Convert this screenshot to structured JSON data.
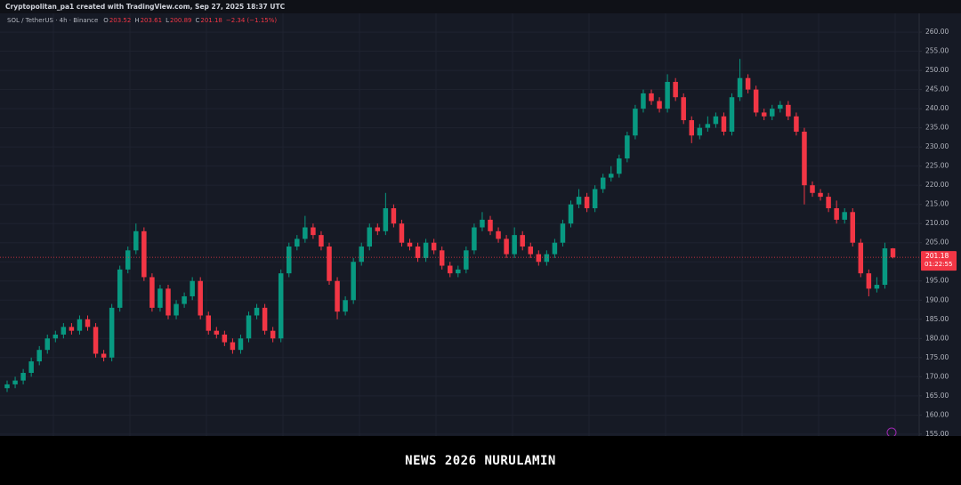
{
  "header": {
    "credit": "Cryptopolitan_pa1 created with TradingView.com, Sep 27, 2025 18:37 UTC"
  },
  "chart_data": {
    "type": "candlestick",
    "symbol": "SOL / TetherUS · 4h · Binance",
    "ohlc_legend": [
      {
        "key": "O",
        "value": "203.52"
      },
      {
        "key": "H",
        "value": "203.61"
      },
      {
        "key": "L",
        "value": "200.89"
      },
      {
        "key": "C",
        "value": "201.18"
      }
    ],
    "change": "−2.34 (−1.15%)",
    "countdown": "01:22:55",
    "up_color": "#089981",
    "down_color": "#f23645",
    "grid": true,
    "ylim": [
      154.5,
      264.9
    ],
    "yticks": [
      {
        "value": 155,
        "label": "155.00"
      },
      {
        "value": 160,
        "label": "160.00"
      },
      {
        "value": 165,
        "label": "165.00"
      },
      {
        "value": 170,
        "label": "170.00"
      },
      {
        "value": 175,
        "label": "175.00"
      },
      {
        "value": 180,
        "label": "180.00"
      },
      {
        "value": 185,
        "label": "185.00"
      },
      {
        "value": 190,
        "label": "190.00"
      },
      {
        "value": 195,
        "label": "195.00"
      },
      {
        "value": 200,
        "label": "200.00"
      },
      {
        "value": 205,
        "label": "205.00"
      },
      {
        "value": 210,
        "label": "210.00"
      },
      {
        "value": 215,
        "label": "215.00"
      },
      {
        "value": 220,
        "label": "220.00"
      },
      {
        "value": 225,
        "label": "225.00"
      },
      {
        "value": 230,
        "label": "230.00"
      },
      {
        "value": 235,
        "label": "235.00"
      },
      {
        "value": 240,
        "label": "240.00"
      },
      {
        "value": 245,
        "label": "245.00"
      },
      {
        "value": 250,
        "label": "250.00"
      },
      {
        "value": 255,
        "label": "255.00"
      },
      {
        "value": 260,
        "label": "260.00"
      }
    ],
    "open": [
      167,
      168,
      169,
      171,
      174,
      177,
      180,
      181,
      183,
      182,
      185,
      183,
      176,
      175,
      188,
      198,
      203,
      208,
      196,
      188,
      193,
      186,
      189,
      191,
      195,
      186,
      182,
      181,
      179,
      177,
      180,
      186,
      188,
      182,
      180,
      197,
      204,
      206,
      209,
      207,
      204,
      195,
      187,
      190,
      200,
      204,
      209,
      208,
      214,
      210,
      205,
      204,
      201,
      205,
      203,
      199,
      197,
      198,
      203,
      209,
      211,
      208,
      206,
      202,
      207,
      204,
      202,
      200,
      202,
      205,
      210,
      215,
      217,
      214,
      219,
      222,
      223,
      227,
      233,
      240,
      244,
      242,
      240,
      247,
      243,
      237,
      233,
      235,
      236,
      238,
      234,
      243,
      248,
      245,
      239,
      238,
      240,
      241,
      238,
      234,
      220,
      218,
      217,
      214,
      211,
      213,
      205,
      197,
      193,
      194,
      203.52
    ],
    "high": [
      169,
      170,
      172,
      175,
      178,
      181,
      182,
      184,
      184,
      186,
      186,
      184,
      177,
      189,
      199,
      204,
      210,
      209,
      197,
      194,
      194,
      190,
      192,
      196,
      196,
      187,
      183,
      182,
      180,
      181,
      187,
      189,
      189,
      183,
      198,
      205,
      207,
      212,
      210,
      208,
      205,
      196,
      191,
      201,
      205,
      210,
      210,
      218,
      215,
      211,
      206,
      205,
      206,
      206,
      204,
      200,
      199,
      204,
      210,
      213,
      212,
      209,
      207,
      209,
      208,
      205,
      203,
      203,
      206,
      211,
      216,
      219,
      218,
      220,
      223,
      225,
      228,
      234,
      241,
      245,
      245,
      243,
      249,
      248,
      244,
      238,
      236,
      238,
      239,
      239,
      244,
      253,
      249,
      246,
      240,
      241,
      242,
      242,
      239,
      235,
      221,
      219,
      218,
      216,
      214,
      214,
      206,
      198,
      196,
      205,
      203.61
    ],
    "low": [
      166,
      167,
      168,
      170,
      173,
      176,
      179,
      180,
      181,
      181,
      182,
      175,
      174,
      174,
      187,
      197,
      202,
      195,
      187,
      187,
      185,
      185,
      188,
      190,
      185,
      181,
      180,
      178,
      176,
      176,
      179,
      185,
      181,
      179,
      179,
      196,
      203,
      205,
      206,
      203,
      194,
      185,
      186,
      189,
      199,
      203,
      207,
      207,
      209,
      204,
      203,
      200,
      200,
      202,
      198,
      196,
      196,
      197,
      202,
      208,
      207,
      205,
      201,
      201,
      203,
      201,
      199,
      199,
      201,
      204,
      209,
      214,
      213,
      213,
      218,
      221,
      222,
      226,
      232,
      239,
      241,
      239,
      239,
      242,
      236,
      231,
      232,
      234,
      235,
      233,
      233,
      242,
      244,
      238,
      237,
      237,
      239,
      237,
      233,
      215,
      217,
      216,
      213,
      210,
      210,
      204,
      196,
      191,
      192,
      193,
      200.89
    ],
    "close": [
      168,
      169,
      171,
      174,
      177,
      180,
      181,
      183,
      182,
      185,
      183,
      176,
      175,
      188,
      198,
      203,
      208,
      196,
      188,
      193,
      186,
      189,
      191,
      195,
      186,
      182,
      181,
      179,
      177,
      180,
      186,
      188,
      182,
      180,
      197,
      204,
      206,
      209,
      207,
      204,
      195,
      187,
      190,
      200,
      204,
      209,
      208,
      214,
      210,
      205,
      204,
      201,
      205,
      203,
      199,
      197,
      198,
      203,
      209,
      211,
      208,
      206,
      202,
      207,
      204,
      202,
      200,
      202,
      205,
      210,
      215,
      217,
      214,
      219,
      222,
      223,
      227,
      233,
      240,
      244,
      242,
      240,
      247,
      243,
      237,
      233,
      235,
      236,
      238,
      234,
      243,
      248,
      245,
      239,
      238,
      240,
      241,
      238,
      234,
      220,
      218,
      217,
      214,
      211,
      213,
      205,
      197,
      193,
      194,
      203.52,
      201.18
    ]
  },
  "banner": {
    "text": "NEWS 2026 NURULAMIN"
  }
}
